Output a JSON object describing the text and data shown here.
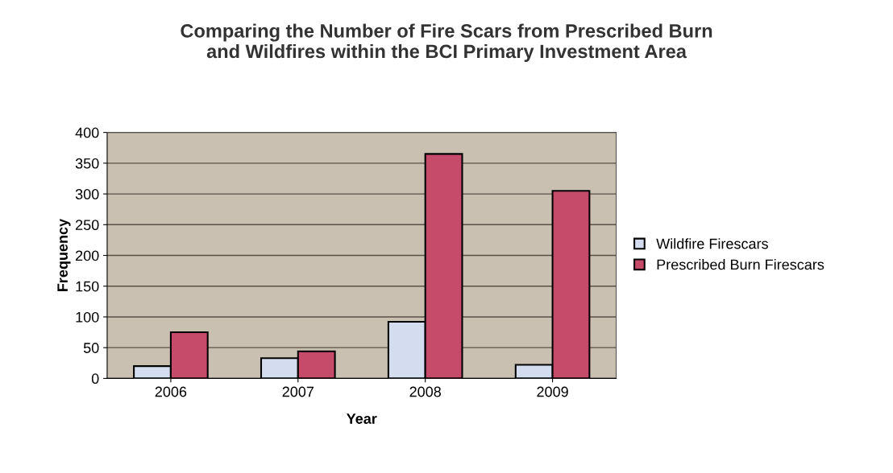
{
  "chart_data": {
    "type": "bar",
    "title": "Comparing the Number of Fire Scars from Prescribed Burn\nand Wildfires within the BCI Primary Investment Area",
    "xlabel": "Year",
    "ylabel": "Frequency",
    "categories": [
      "2006",
      "2007",
      "2008",
      "2009"
    ],
    "series": [
      {
        "name": "Wildfire Firescars",
        "color": "#d4ddef",
        "values": [
          20,
          33,
          92,
          22
        ]
      },
      {
        "name": "Prescribed Burn Firescars",
        "color": "#c64a6a",
        "values": [
          75,
          44,
          365,
          305
        ]
      }
    ],
    "ylim": [
      0,
      400
    ],
    "yticks": [
      0,
      50,
      100,
      150,
      200,
      250,
      300,
      350,
      400
    ],
    "grid": "y",
    "legend": "right"
  }
}
